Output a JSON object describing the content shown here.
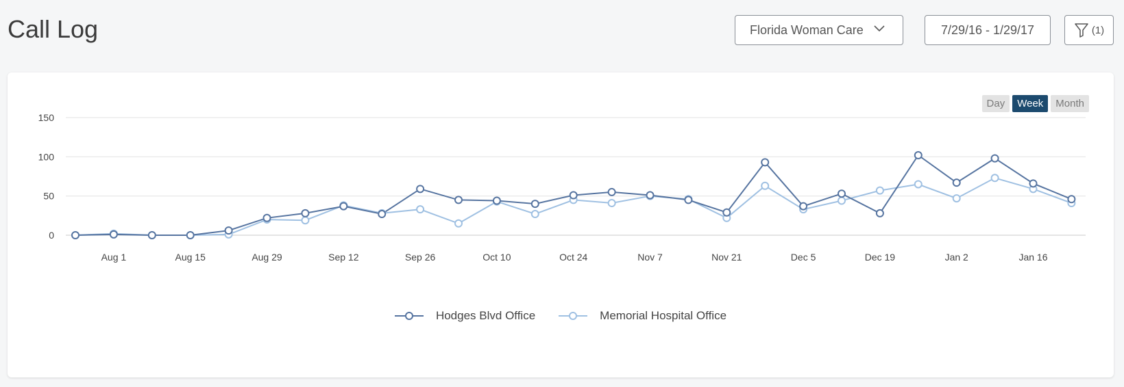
{
  "page": {
    "title": "Call Log"
  },
  "header": {
    "practice_select": {
      "value": "Florida Woman Care",
      "icon": "chevron-down-icon"
    },
    "date_range": {
      "value": "7/29/16 - 1/29/17"
    },
    "filter": {
      "count_label": "(1)",
      "icon": "filter-icon"
    }
  },
  "period_toggle": {
    "options": [
      "Day",
      "Week",
      "Month"
    ],
    "selected": "Week"
  },
  "colors": {
    "hodges": "#5674a0",
    "memorial": "#9fc0e2",
    "active_toggle": "#1c4a6e"
  },
  "chart_data": {
    "type": "line",
    "title": "",
    "xlabel": "",
    "ylabel": "",
    "ylim": [
      0,
      150
    ],
    "yticks": [
      0,
      50,
      100,
      150
    ],
    "xticks": [
      "Aug 1",
      "Aug 15",
      "Aug 29",
      "Sep 12",
      "Sep 26",
      "Oct 10",
      "Oct 24",
      "Nov 7",
      "Nov 21",
      "Dec 5",
      "Dec 19",
      "Jan 2",
      "Jan 16"
    ],
    "x": [
      "Jul 25",
      "Aug 1",
      "Aug 8",
      "Aug 15",
      "Aug 22",
      "Aug 29",
      "Sep 5",
      "Sep 12",
      "Sep 19",
      "Sep 26",
      "Oct 3",
      "Oct 10",
      "Oct 17",
      "Oct 24",
      "Oct 31",
      "Nov 7",
      "Nov 14",
      "Nov 21",
      "Nov 28",
      "Dec 5",
      "Dec 12",
      "Dec 19",
      "Dec 26",
      "Jan 2",
      "Jan 9",
      "Jan 16",
      "Jan 23"
    ],
    "grid": true,
    "legend_position": "bottom-center",
    "series": [
      {
        "name": "Hodges Blvd Office",
        "values": [
          0,
          1,
          0,
          0,
          6,
          22,
          28,
          37,
          27,
          59,
          45,
          44,
          40,
          51,
          55,
          51,
          45,
          29,
          93,
          37,
          53,
          28,
          102,
          67,
          98,
          66,
          46
        ]
      },
      {
        "name": "Memorial Hospital Office",
        "values": [
          0,
          2,
          0,
          0,
          1,
          20,
          19,
          38,
          28,
          33,
          15,
          43,
          27,
          45,
          41,
          50,
          46,
          22,
          63,
          33,
          44,
          57,
          65,
          47,
          73,
          59,
          41
        ]
      }
    ]
  }
}
